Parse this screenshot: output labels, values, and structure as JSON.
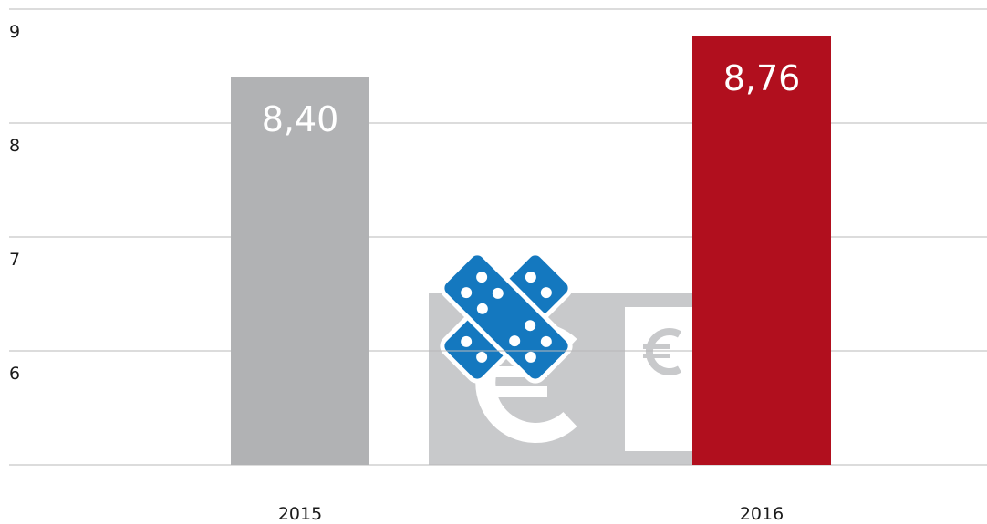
{
  "chart_data": {
    "type": "bar",
    "categories": [
      "2015",
      "2016"
    ],
    "values": [
      8.4,
      8.76
    ],
    "value_labels": [
      "8,40",
      "8,76"
    ],
    "colors": [
      "#b1b2b4",
      "#b10f1e"
    ],
    "ylim": [
      5,
      9
    ],
    "yticks": [
      6,
      7,
      8,
      9
    ],
    "grid": true
  }
}
